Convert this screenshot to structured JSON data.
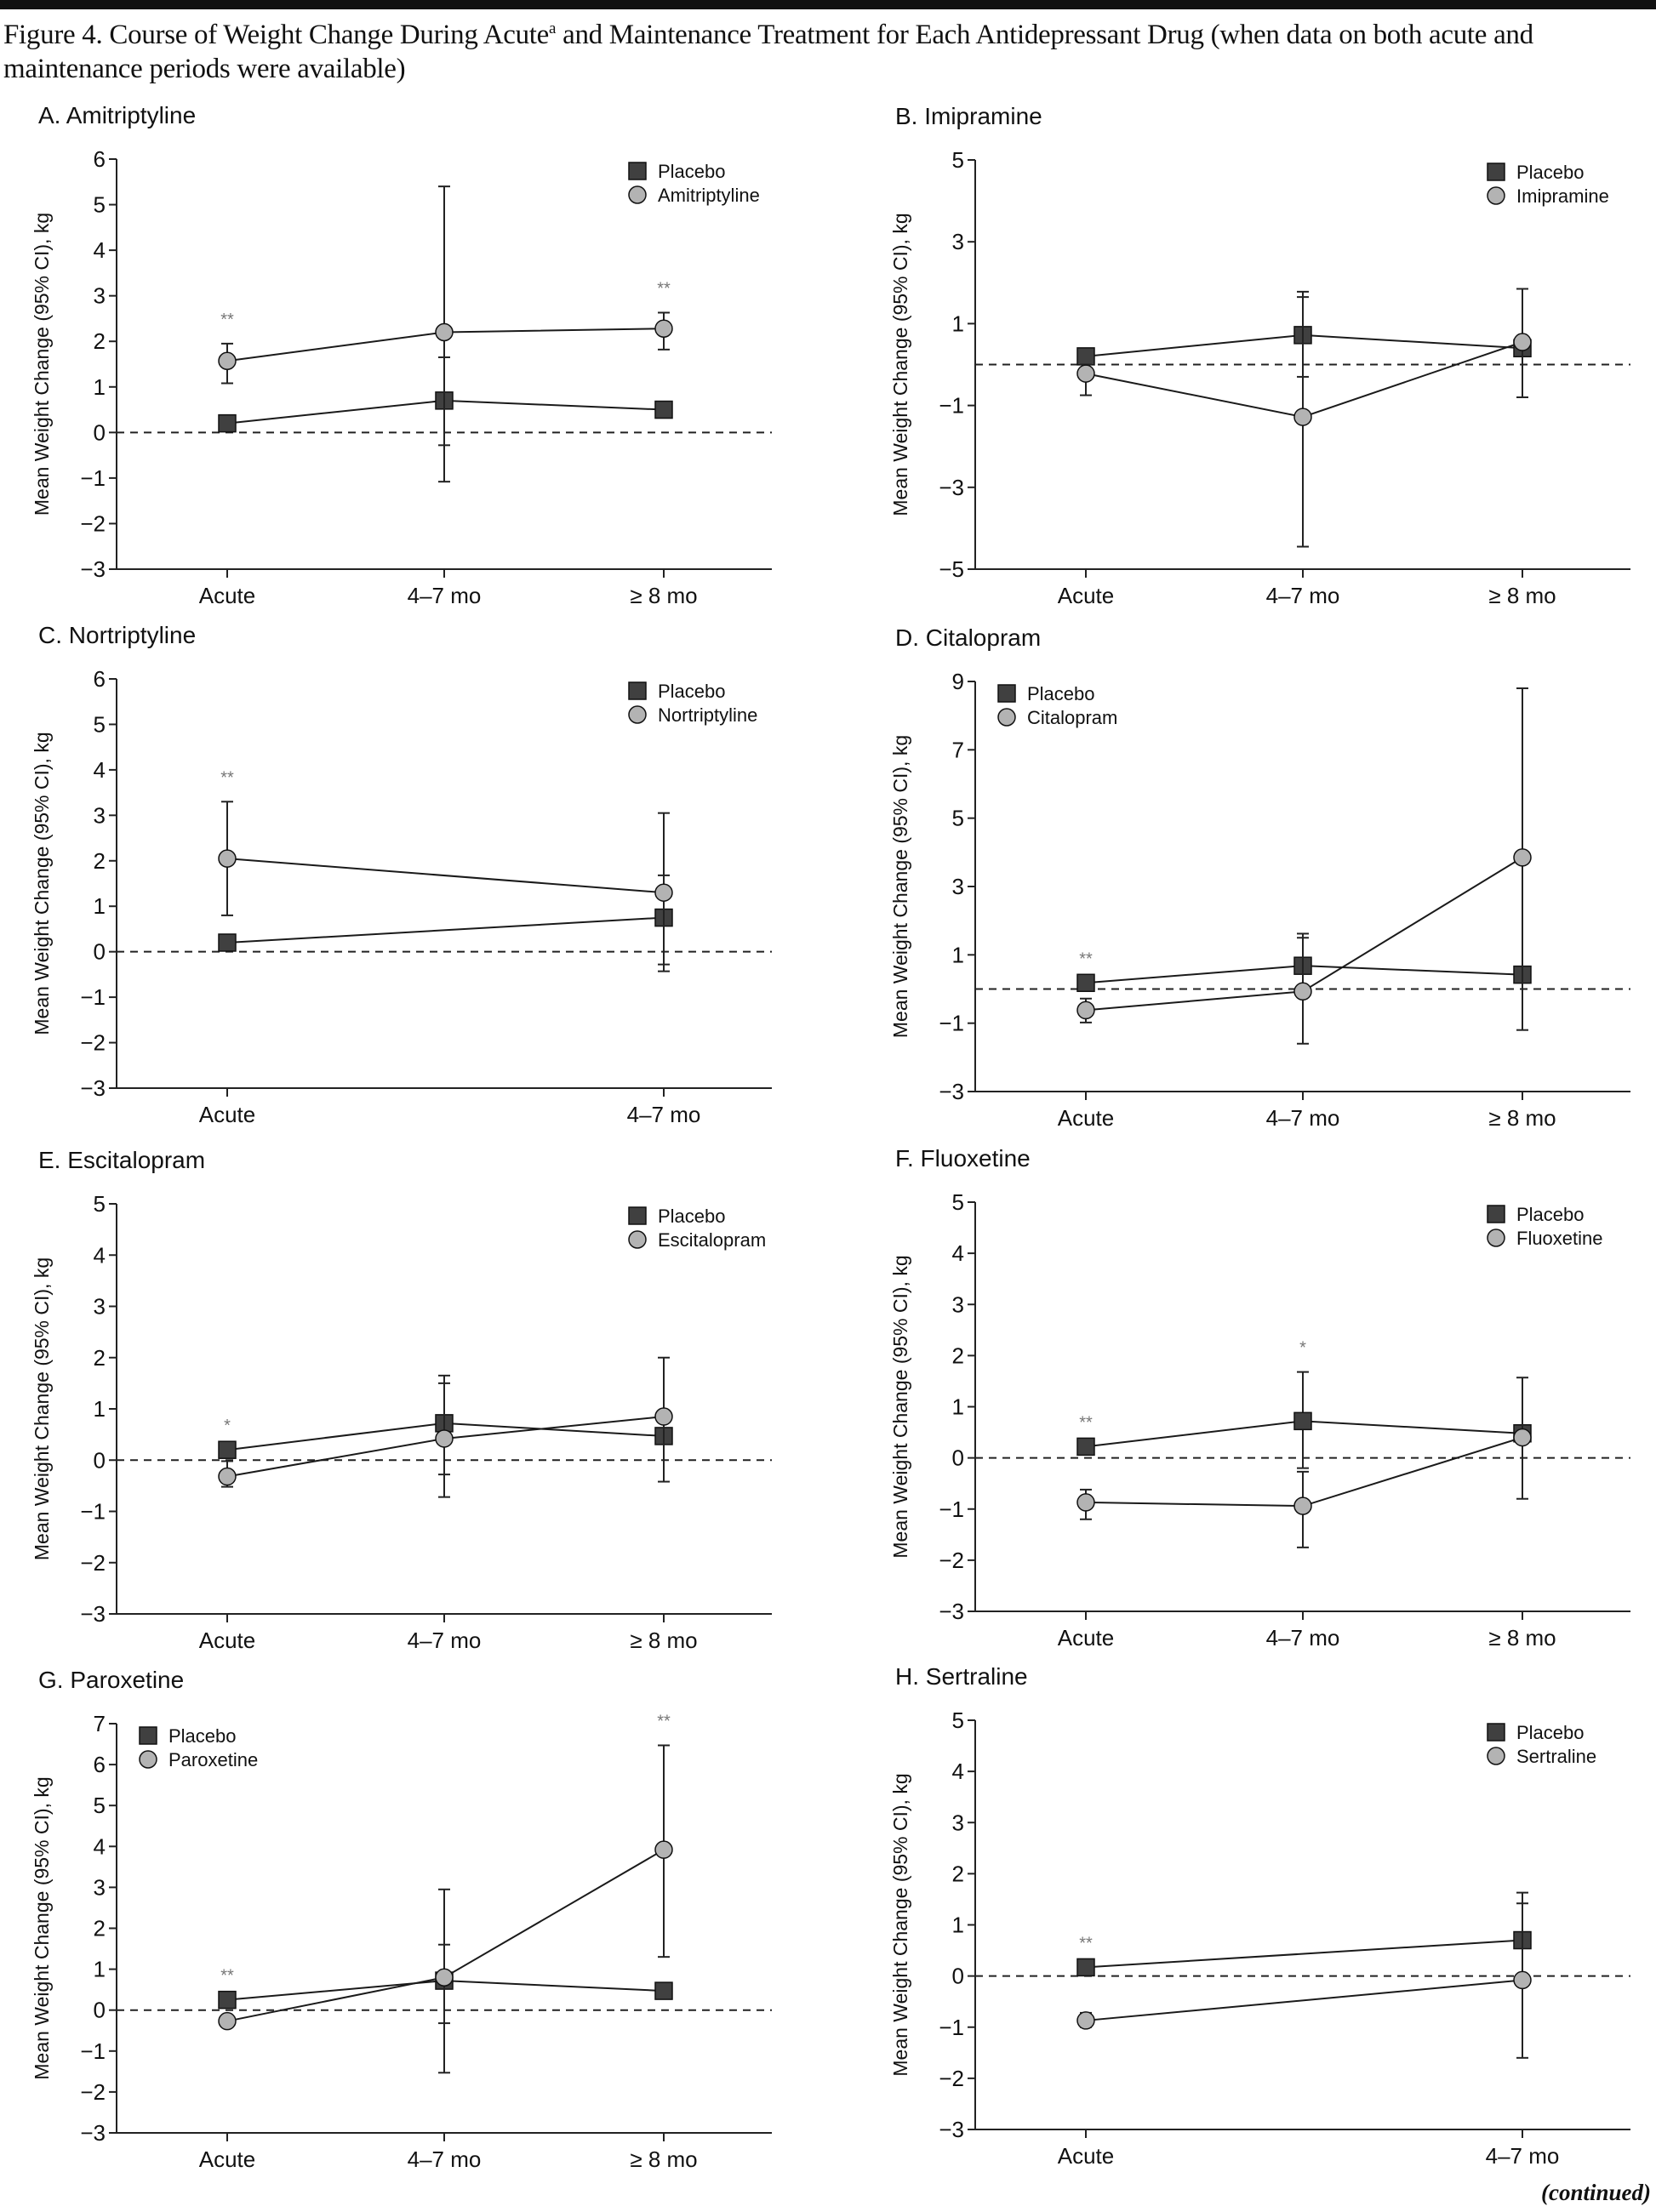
{
  "figure": {
    "title_part1": "Figure 4. Course of Weight Change During Acute",
    "title_sup": "a",
    "title_part2": " and Maintenance Treatment for Each Antidepressant Drug (when data on both acute and maintenance periods were available)",
    "continued": "(continued)"
  },
  "colors": {
    "placebo": "#404040",
    "drug": "#b3b3b3",
    "line": "#1a1a1a",
    "asterisk": "#777777"
  },
  "chart_data": [
    {
      "type": "line",
      "title": "A. Amitriptyline",
      "ylabel": "Mean Weight Change (95% CI), kg",
      "ylim": [
        -3,
        6
      ],
      "yticks": [
        -3,
        -2,
        -1,
        0,
        1,
        2,
        3,
        4,
        5,
        6
      ],
      "categories": [
        "Acute",
        "4–7 mo",
        "≥ 8 mo"
      ],
      "legend": "top-right",
      "reference_line": 0,
      "series": [
        {
          "name": "Placebo",
          "marker": "square",
          "values": [
            0.2,
            0.7,
            0.5
          ],
          "ci": [
            [
              0.1,
              0.3
            ],
            [
              -0.28,
              1.65
            ],
            null
          ]
        },
        {
          "name": "Amitriptyline",
          "marker": "circle",
          "values": [
            1.57,
            2.2,
            2.28
          ],
          "ci": [
            [
              1.08,
              1.95
            ],
            [
              -1.08,
              5.4
            ],
            [
              1.82,
              2.63
            ]
          ]
        }
      ],
      "annotations": [
        {
          "category": "Acute",
          "text": "**"
        },
        {
          "category": "≥ 8 mo",
          "text": "**"
        }
      ]
    },
    {
      "type": "line",
      "title": "B. Imipramine",
      "ylabel": "Mean Weight Change (95% CI), kg",
      "ylim": [
        -5,
        5
      ],
      "yticks": [
        -5,
        -3,
        -1,
        1,
        3,
        5
      ],
      "categories": [
        "Acute",
        "4–7 mo",
        "≥ 8 mo"
      ],
      "legend": "top-right",
      "reference_line": 0,
      "series": [
        {
          "name": "Placebo",
          "marker": "square",
          "values": [
            0.2,
            0.72,
            0.4
          ],
          "ci": [
            null,
            [
              -0.3,
              1.65
            ],
            null
          ]
        },
        {
          "name": "Imipramine",
          "marker": "circle",
          "values": [
            -0.22,
            -1.28,
            0.55
          ],
          "ci": [
            [
              -0.75,
              0.0
            ],
            [
              -4.45,
              1.78
            ],
            [
              -0.8,
              1.85
            ]
          ]
        }
      ],
      "annotations": []
    },
    {
      "type": "line",
      "title": "C. Nortriptyline",
      "ylabel": "Mean Weight Change (95% CI), kg",
      "ylim": [
        -3,
        6
      ],
      "yticks": [
        -3,
        -2,
        -1,
        0,
        1,
        2,
        3,
        4,
        5,
        6
      ],
      "categories": [
        "Acute",
        "4–7 mo"
      ],
      "legend": "top-right",
      "reference_line": 0,
      "series": [
        {
          "name": "Placebo",
          "marker": "square",
          "values": [
            0.2,
            0.75
          ],
          "ci": [
            null,
            [
              -0.28,
              1.68
            ]
          ]
        },
        {
          "name": "Nortriptyline",
          "marker": "circle",
          "values": [
            2.05,
            1.3
          ],
          "ci": [
            [
              0.8,
              3.3
            ],
            [
              -0.43,
              3.05
            ]
          ]
        }
      ],
      "annotations": [
        {
          "category": "Acute",
          "text": "**"
        }
      ]
    },
    {
      "type": "line",
      "title": "D. Citalopram",
      "ylabel": "Mean Weight Change (95% CI), kg",
      "ylim": [
        -3,
        9
      ],
      "yticks": [
        -3,
        -1,
        1,
        3,
        5,
        7,
        9
      ],
      "categories": [
        "Acute",
        "4–7 mo",
        "≥ 8 mo"
      ],
      "legend": "top-left",
      "reference_line": 0,
      "series": [
        {
          "name": "Placebo",
          "marker": "square",
          "values": [
            0.18,
            0.68,
            0.42
          ],
          "ci": [
            null,
            [
              -0.15,
              1.5
            ],
            null
          ]
        },
        {
          "name": "Citalopram",
          "marker": "circle",
          "values": [
            -0.62,
            -0.07,
            3.85
          ],
          "ci": [
            [
              -0.98,
              -0.28
            ],
            [
              -1.6,
              1.62
            ],
            [
              -1.2,
              8.8
            ]
          ]
        }
      ],
      "annotations": [
        {
          "category": "Acute",
          "text": "**"
        }
      ]
    },
    {
      "type": "line",
      "title": "E. Escitalopram",
      "ylabel": "Mean Weight Change (95% CI), kg",
      "ylim": [
        -3,
        5
      ],
      "yticks": [
        -3,
        -2,
        -1,
        0,
        1,
        2,
        3,
        4,
        5
      ],
      "categories": [
        "Acute",
        "4–7 mo",
        "≥ 8 mo"
      ],
      "legend": "top-right",
      "reference_line": 0,
      "series": [
        {
          "name": "Placebo",
          "marker": "square",
          "values": [
            0.2,
            0.72,
            0.47
          ],
          "ci": [
            null,
            [
              -0.28,
              1.5
            ],
            null
          ]
        },
        {
          "name": "Escitalopram",
          "marker": "circle",
          "values": [
            -0.32,
            0.42,
            0.85
          ],
          "ci": [
            [
              -0.52,
              -0.02
            ],
            [
              -0.72,
              1.65
            ],
            [
              -0.42,
              2.0
            ]
          ]
        }
      ],
      "annotations": [
        {
          "category": "Acute",
          "text": "*"
        }
      ]
    },
    {
      "type": "line",
      "title": "F. Fluoxetine",
      "ylabel": "Mean Weight Change (95% CI), kg",
      "ylim": [
        -3,
        5
      ],
      "yticks": [
        -3,
        -2,
        -1,
        0,
        1,
        2,
        3,
        4,
        5
      ],
      "categories": [
        "Acute",
        "4–7 mo",
        "≥ 8 mo"
      ],
      "legend": "top-right",
      "reference_line": 0,
      "series": [
        {
          "name": "Placebo",
          "marker": "square",
          "values": [
            0.22,
            0.72,
            0.48
          ],
          "ci": [
            null,
            [
              -0.2,
              1.68
            ],
            null
          ]
        },
        {
          "name": "Fluoxetine",
          "marker": "circle",
          "values": [
            -0.87,
            -0.94,
            0.4
          ],
          "ci": [
            [
              -1.2,
              -0.62
            ],
            [
              -1.75,
              -0.27
            ],
            [
              -0.8,
              1.57
            ]
          ]
        }
      ],
      "annotations": [
        {
          "category": "Acute",
          "text": "**"
        },
        {
          "category": "4–7 mo",
          "text": "*"
        }
      ]
    },
    {
      "type": "line",
      "title": "G. Paroxetine",
      "ylabel": "Mean Weight Change (95% CI), kg",
      "ylim": [
        -3,
        7
      ],
      "yticks": [
        -3,
        -2,
        -1,
        0,
        1,
        2,
        3,
        4,
        5,
        6,
        7
      ],
      "categories": [
        "Acute",
        "4–7 mo",
        "≥ 8 mo"
      ],
      "legend": "top-left",
      "reference_line": 0,
      "series": [
        {
          "name": "Placebo",
          "marker": "square",
          "values": [
            0.25,
            0.72,
            0.47
          ],
          "ci": [
            null,
            [
              -0.32,
              1.6
            ],
            null
          ]
        },
        {
          "name": "Paroxetine",
          "marker": "circle",
          "values": [
            -0.27,
            0.8,
            3.92
          ],
          "ci": [
            null,
            [
              -1.53,
              2.95
            ],
            [
              1.3,
              6.47
            ]
          ]
        }
      ],
      "annotations": [
        {
          "category": "Acute",
          "text": "**"
        },
        {
          "category": "≥ 8 mo",
          "text": "**"
        }
      ]
    },
    {
      "type": "line",
      "title": "H. Sertraline",
      "ylabel": "Mean Weight Change (95% CI), kg",
      "ylim": [
        -3,
        5
      ],
      "yticks": [
        -3,
        -2,
        -1,
        0,
        1,
        2,
        3,
        4,
        5
      ],
      "categories": [
        "Acute",
        "4–7 mo"
      ],
      "legend": "top-right",
      "reference_line": 0,
      "series": [
        {
          "name": "Placebo",
          "marker": "square",
          "values": [
            0.17,
            0.7
          ],
          "ci": [
            null,
            [
              -0.2,
              1.63
            ]
          ]
        },
        {
          "name": "Sertraline",
          "marker": "circle",
          "values": [
            -0.87,
            -0.08
          ],
          "ci": [
            [
              -1.0,
              -0.72
            ],
            [
              -1.6,
              1.42
            ]
          ]
        }
      ],
      "annotations": [
        {
          "category": "Acute",
          "text": "**"
        }
      ]
    }
  ]
}
